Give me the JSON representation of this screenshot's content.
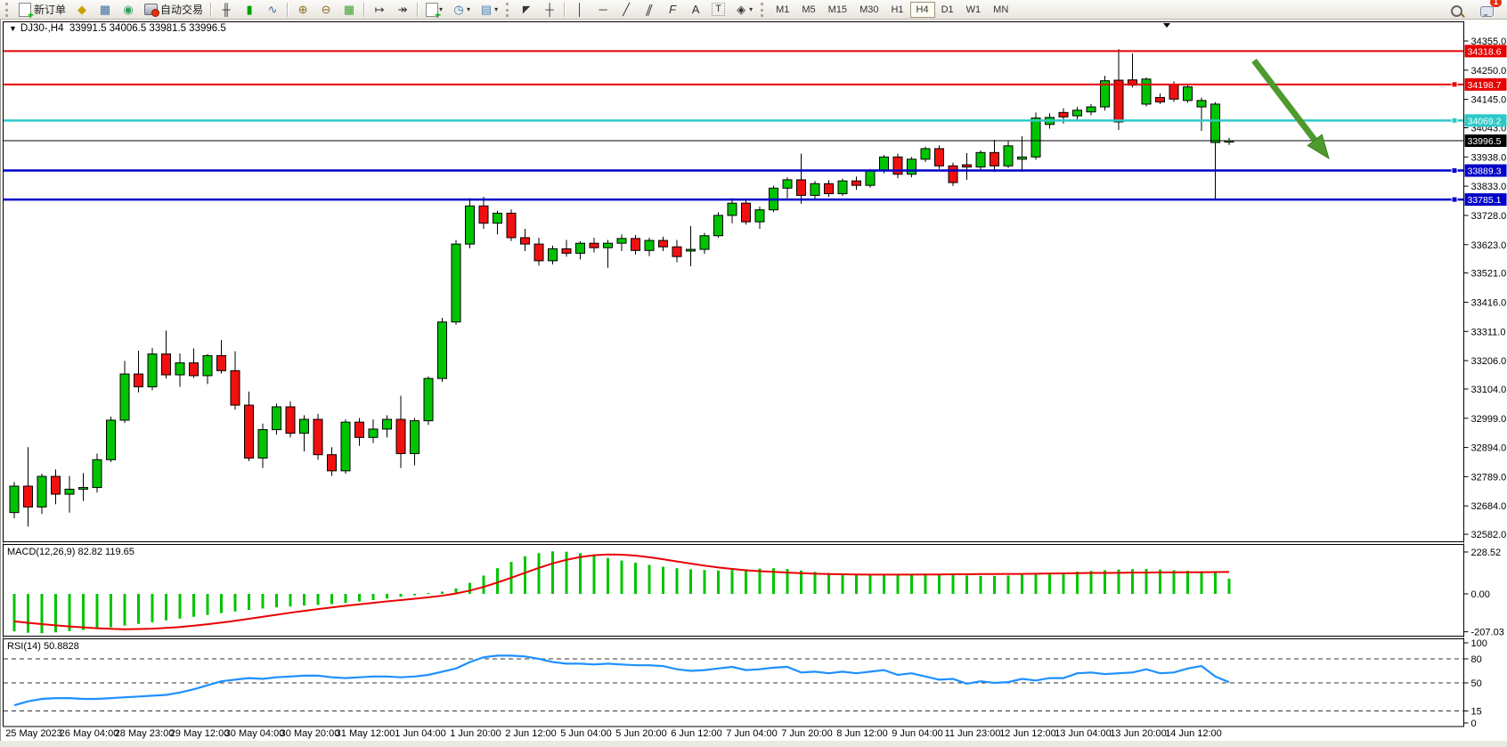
{
  "toolbar": {
    "new_order_label": "新订单",
    "autotrading_label": "自动交易",
    "timeframes": [
      "M1",
      "M5",
      "M15",
      "M30",
      "H1",
      "H4",
      "D1",
      "W1",
      "MN"
    ],
    "active_timeframe": "H4",
    "notification_badge": "1"
  },
  "icons": {
    "dropdown_arrow": "▾",
    "title_caret": "▼",
    "chart_profile": "◆",
    "market_watch": "▦",
    "signals": "◉",
    "ohlc_bars": "╫",
    "candlestick": "▮",
    "line_chart": "∿",
    "zoom_in": "⊕",
    "zoom_out": "⊖",
    "tile_windows": "▦",
    "auto_scroll": "↦",
    "chart_shift": "↠",
    "clock": "◷",
    "template": "▤",
    "cursor": "◤",
    "crosshair": "┼",
    "vertical_line": "│",
    "horizontal_line": "─",
    "trendline": "╱",
    "channel": "∥",
    "fibonacci": "F",
    "text": "A",
    "text_label": "T",
    "arrows_tool": "◈"
  },
  "chart": {
    "title": {
      "symbol_period": "DJ30-,H4",
      "ohlc": "33991.5 34006.5 33981.5 33996.5"
    },
    "price_axis_ticks": [
      "34355.0",
      "34250.0",
      "34145.0",
      "34043.0",
      "33938.0",
      "33833.0",
      "33728.0",
      "33623.0",
      "33521.0",
      "33416.0",
      "33311.0",
      "33206.0",
      "33104.0",
      "32999.0",
      "32894.0",
      "32789.0",
      "32684.0",
      "32582.0"
    ],
    "hlines": [
      {
        "price": 34318.6,
        "label": "34318.6",
        "color": "#E60000",
        "width": 2,
        "marker": false,
        "name": "resistance-line-1"
      },
      {
        "price": 34198.7,
        "label": "34198.7",
        "color": "#E60000",
        "width": 2,
        "marker": true,
        "name": "resistance-line-2"
      },
      {
        "price": 34069.2,
        "label": "34069.2",
        "color": "#2DC9C9",
        "width": 2.5,
        "marker": true,
        "name": "pivot-line-cyan"
      },
      {
        "price": 33889.3,
        "label": "33889.3",
        "color": "#0000C8",
        "width": 2.5,
        "marker": true,
        "name": "support-line-1"
      },
      {
        "price": 33785.1,
        "label": "33785.1",
        "color": "#0000C8",
        "width": 2.5,
        "marker": true,
        "name": "support-line-2"
      }
    ],
    "current_price": {
      "price": 33996.5,
      "label": "33996.5",
      "color": "#000000"
    },
    "time_axis": [
      "25 May 2023",
      "26 May 04:00",
      "28 May 23:00",
      "29 May 12:00",
      "30 May 04:00",
      "30 May 20:00",
      "31 May 12:00",
      "1 Jun 04:00",
      "1 Jun 20:00",
      "2 Jun 12:00",
      "5 Jun 04:00",
      "5 Jun 20:00",
      "6 Jun 12:00",
      "7 Jun 04:00",
      "7 Jun 20:00",
      "8 Jun 12:00",
      "9 Jun 04:00",
      "11 Jun 23:00",
      "12 Jun 12:00",
      "13 Jun 04:00",
      "13 Jun 20:00",
      "14 Jun 12:00"
    ]
  },
  "indicators": {
    "macd": {
      "label": "MACD(12,26,9) 82.82 119.65",
      "axis": [
        "228.52",
        "0.00",
        "-207.03"
      ],
      "axis_values": [
        228.52,
        0,
        -207.03
      ]
    },
    "rsi": {
      "label": "RSI(14) 50.8828",
      "axis": [
        "100",
        "80",
        "50",
        "15",
        "0"
      ],
      "axis_values": [
        100,
        80,
        50,
        15,
        0
      ],
      "levels": [
        80,
        50,
        15
      ]
    }
  },
  "annotation": {
    "arrow": {
      "from": [
        1408,
        68
      ],
      "to": [
        1492,
        178
      ],
      "color": "#4E9A2E"
    }
  },
  "chart_data": [
    {
      "type": "candlestick",
      "title": "DJ30-,H4",
      "period": "H4",
      "up_color": "#00C400",
      "down_color": "#F01010",
      "ohlc": [
        [
          32660,
          32770,
          32640,
          32755
        ],
        [
          32755,
          32895,
          32610,
          32680
        ],
        [
          32680,
          32800,
          32655,
          32790
        ],
        [
          32790,
          32815,
          32690,
          32726
        ],
        [
          32726,
          32792,
          32660,
          32744
        ],
        [
          32744,
          32802,
          32702,
          32750
        ],
        [
          32750,
          32872,
          32732,
          32850
        ],
        [
          32850,
          33005,
          32842,
          32992
        ],
        [
          32992,
          33205,
          32982,
          33158
        ],
        [
          33158,
          33242,
          33092,
          33112
        ],
        [
          33112,
          33252,
          33100,
          33230
        ],
        [
          33230,
          33314,
          33142,
          33155
        ],
        [
          33155,
          33232,
          33112,
          33198
        ],
        [
          33198,
          33250,
          33144,
          33152
        ],
        [
          33152,
          33230,
          33122,
          33224
        ],
        [
          33224,
          33280,
          33160,
          33170
        ],
        [
          33170,
          33240,
          33030,
          33046
        ],
        [
          33046,
          33095,
          32845,
          32856
        ],
        [
          32856,
          32980,
          32820,
          32958
        ],
        [
          32958,
          33052,
          32940,
          33040
        ],
        [
          33040,
          33060,
          32930,
          32945
        ],
        [
          32945,
          33010,
          32880,
          32995
        ],
        [
          32995,
          33015,
          32850,
          32868
        ],
        [
          32868,
          32895,
          32792,
          32810
        ],
        [
          32810,
          32995,
          32800,
          32985
        ],
        [
          32985,
          33000,
          32900,
          32930
        ],
        [
          32930,
          32995,
          32910,
          32960
        ],
        [
          32960,
          33010,
          32930,
          32995
        ],
        [
          32995,
          33080,
          32820,
          32872
        ],
        [
          32872,
          33000,
          32830,
          32990
        ],
        [
          32990,
          33150,
          32975,
          33142
        ],
        [
          33142,
          33360,
          33130,
          33345
        ],
        [
          33345,
          33640,
          33335,
          33625
        ],
        [
          33625,
          33790,
          33610,
          33762
        ],
        [
          33762,
          33795,
          33680,
          33700
        ],
        [
          33700,
          33745,
          33660,
          33736
        ],
        [
          33736,
          33750,
          33636,
          33648
        ],
        [
          33648,
          33680,
          33600,
          33625
        ],
        [
          33625,
          33648,
          33548,
          33565
        ],
        [
          33565,
          33620,
          33552,
          33608
        ],
        [
          33608,
          33640,
          33580,
          33592
        ],
        [
          33592,
          33635,
          33570,
          33628
        ],
        [
          33628,
          33648,
          33595,
          33612
        ],
        [
          33612,
          33640,
          33540,
          33628
        ],
        [
          33628,
          33660,
          33600,
          33645
        ],
        [
          33645,
          33658,
          33588,
          33602
        ],
        [
          33602,
          33648,
          33582,
          33638
        ],
        [
          33638,
          33652,
          33600,
          33615
        ],
        [
          33615,
          33640,
          33560,
          33580
        ],
        [
          33600,
          33690,
          33545,
          33606
        ],
        [
          33606,
          33665,
          33590,
          33655
        ],
        [
          33655,
          33740,
          33648,
          33728
        ],
        [
          33728,
          33790,
          33700,
          33772
        ],
        [
          33772,
          33785,
          33695,
          33705
        ],
        [
          33705,
          33760,
          33680,
          33748
        ],
        [
          33748,
          33835,
          33740,
          33826
        ],
        [
          33826,
          33865,
          33790,
          33856
        ],
        [
          33856,
          33950,
          33770,
          33800
        ],
        [
          33800,
          33852,
          33782,
          33842
        ],
        [
          33842,
          33855,
          33795,
          33806
        ],
        [
          33806,
          33860,
          33798,
          33852
        ],
        [
          33852,
          33868,
          33820,
          33836
        ],
        [
          33836,
          33895,
          33828,
          33888
        ],
        [
          33888,
          33945,
          33880,
          33938
        ],
        [
          33938,
          33950,
          33862,
          33876
        ],
        [
          33876,
          33938,
          33865,
          33930
        ],
        [
          33930,
          33975,
          33920,
          33968
        ],
        [
          33968,
          33980,
          33895,
          33906
        ],
        [
          33906,
          33918,
          33834,
          33846
        ],
        [
          33910,
          33952,
          33856,
          33902
        ],
        [
          33902,
          33962,
          33890,
          33954
        ],
        [
          33954,
          34000,
          33884,
          33906
        ],
        [
          33906,
          33996,
          33898,
          33978
        ],
        [
          33930,
          34013,
          33885,
          33938
        ],
        [
          33938,
          34098,
          33928,
          34078
        ],
        [
          34055,
          34095,
          34040,
          34080
        ],
        [
          34098,
          34113,
          34058,
          34082
        ],
        [
          34086,
          34118,
          34074,
          34106
        ],
        [
          34100,
          34128,
          34088,
          34118
        ],
        [
          34118,
          34230,
          34105,
          34212
        ],
        [
          34214,
          34326,
          34035,
          34064
        ],
        [
          34215,
          34310,
          34188,
          34196
        ],
        [
          34128,
          34224,
          34120,
          34218
        ],
        [
          34152,
          34166,
          34128,
          34136
        ],
        [
          34198,
          34210,
          34136,
          34146
        ],
        [
          34141,
          34198,
          34133,
          34190
        ],
        [
          34118,
          34152,
          34032,
          34141
        ],
        [
          33990,
          34135,
          33782,
          34128
        ],
        [
          33991.5,
          34006.5,
          33981.5,
          33996.5
        ]
      ]
    },
    {
      "type": "bar",
      "name": "MACD(12,26,9) histogram",
      "color": "#00C400",
      "ylim": [
        -207.03,
        228.52
      ],
      "values": [
        -205,
        -212,
        -215,
        -210,
        -204,
        -197,
        -190,
        -182,
        -173,
        -164,
        -155,
        -145,
        -135,
        -125,
        -115,
        -105,
        -96,
        -88,
        -80,
        -74,
        -69,
        -64,
        -60,
        -56,
        -50,
        -42,
        -34,
        -26,
        -16,
        -8,
        5,
        12,
        30,
        60,
        100,
        140,
        175,
        205,
        222,
        232,
        230,
        222,
        210,
        196,
        182,
        170,
        158,
        148,
        140,
        134,
        130,
        128,
        130,
        134,
        138,
        140,
        136,
        128,
        120,
        114,
        108,
        105,
        104,
        105,
        107,
        109,
        110,
        108,
        104,
        100,
        98,
        98,
        100,
        104,
        108,
        113,
        117,
        121,
        125,
        129,
        133,
        135,
        136,
        133,
        129,
        126,
        124,
        121,
        83
      ]
    },
    {
      "type": "line",
      "name": "MACD signal",
      "color": "#E80000",
      "values": [
        -150,
        -158,
        -165,
        -172,
        -178,
        -183,
        -188,
        -191,
        -193,
        -192,
        -190,
        -186,
        -181,
        -174,
        -166,
        -157,
        -147,
        -136,
        -125,
        -114,
        -103,
        -93,
        -83,
        -74,
        -65,
        -57,
        -49,
        -41,
        -34,
        -27,
        -19,
        -10,
        2,
        18,
        38,
        62,
        88,
        115,
        142,
        166,
        186,
        201,
        211,
        215,
        214,
        209,
        200,
        189,
        177,
        165,
        154,
        144,
        136,
        129,
        124,
        120,
        116,
        113,
        110,
        108,
        107,
        106,
        105,
        105,
        105,
        105,
        106,
        106,
        107,
        107,
        108,
        108,
        109,
        109,
        110,
        111,
        112,
        113,
        114,
        114,
        115,
        116,
        116,
        117,
        117,
        118,
        118,
        119,
        119.65
      ]
    },
    {
      "type": "line",
      "name": "RSI(14)",
      "color": "#1E90FF",
      "ylim": [
        0,
        100
      ],
      "values": [
        22,
        27,
        30,
        31,
        31,
        30,
        30,
        31,
        32,
        33,
        34,
        35,
        38,
        42,
        47,
        52,
        54,
        56,
        55,
        57,
        58,
        59,
        59,
        57,
        56,
        57,
        58,
        58,
        57,
        58,
        60,
        64,
        68,
        76,
        82,
        84,
        84,
        83,
        80,
        76,
        74,
        74,
        73,
        74,
        73,
        72,
        72,
        71,
        67,
        65,
        66,
        68,
        70,
        66,
        67,
        69,
        70,
        63,
        64,
        62,
        64,
        62,
        64,
        66,
        60,
        62,
        58,
        54,
        55,
        49,
        52,
        50,
        51,
        55,
        53,
        56,
        56,
        62,
        63,
        61,
        62,
        63,
        67,
        62,
        63,
        68,
        71,
        58,
        50.88
      ]
    }
  ]
}
